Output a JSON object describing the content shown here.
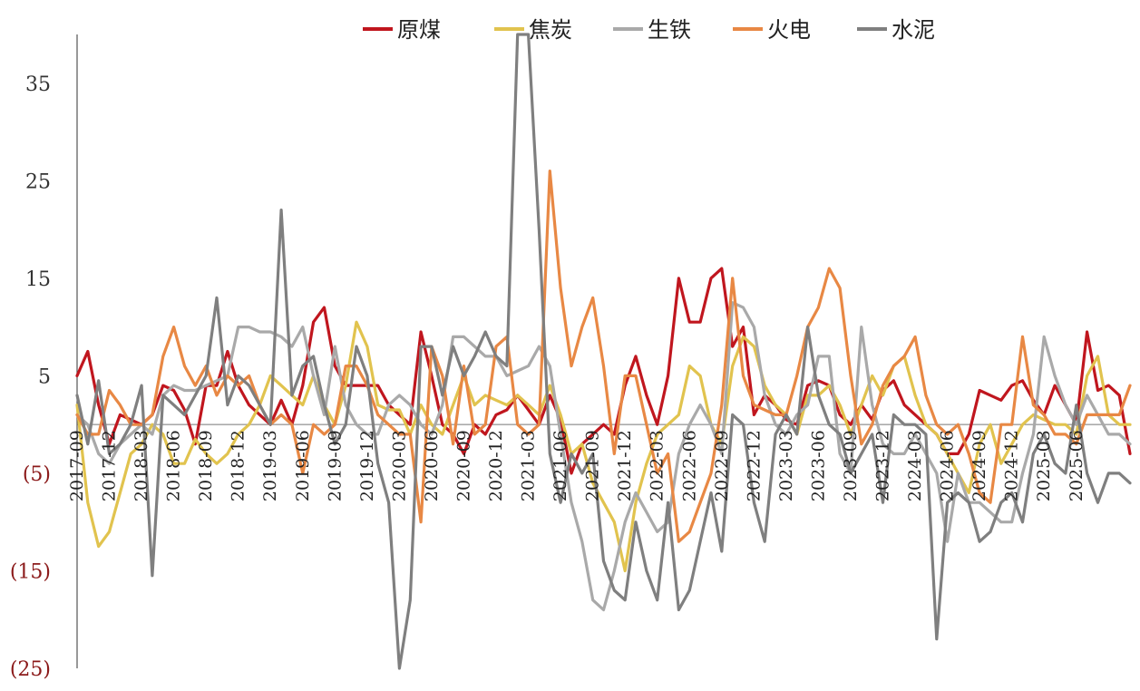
{
  "chart_data": {
    "type": "line",
    "title": "",
    "xlabel": "",
    "ylabel": "",
    "ylim": [
      -25,
      40
    ],
    "yticks": [
      {
        "value": 35,
        "label": "35"
      },
      {
        "value": 25,
        "label": "25"
      },
      {
        "value": 15,
        "label": "15"
      },
      {
        "value": 5,
        "label": "5"
      },
      {
        "value": -5,
        "label": "(5)"
      },
      {
        "value": -15,
        "label": "(15)"
      },
      {
        "value": -25,
        "label": "(25)"
      }
    ],
    "x_start": "2017-09",
    "x_end": "2025-07",
    "xtick_labels": [
      "2017-09",
      "2017-12",
      "2018-03",
      "2018-06",
      "2018-09",
      "2018-12",
      "2019-03",
      "2019-06",
      "2019-09",
      "2019-12",
      "2020-03",
      "2020-06",
      "2020-09",
      "2020-12",
      "2021-03",
      "2021-06",
      "2021-09",
      "2021-12",
      "2022-03",
      "2022-06",
      "2022-09",
      "2022-12",
      "2023-03",
      "2023-06",
      "2023-09",
      "2023-12",
      "2024-03",
      "2024-06",
      "2024-09",
      "2024-12",
      "2025-03",
      "2025-06"
    ],
    "legend_position": "top",
    "tick_colors": {
      "positive": "#333333",
      "negative": "#8B1A1A"
    },
    "series": [
      {
        "name": "原煤",
        "color": "#C0161E",
        "values": [
          5,
          7.5,
          2,
          -2,
          1,
          0.5,
          0,
          1,
          4,
          3.5,
          1.5,
          -2,
          4,
          4,
          7.5,
          4,
          2,
          1,
          0,
          2.5,
          0,
          4,
          10.5,
          12,
          6,
          4,
          4,
          4,
          4,
          2,
          1,
          0,
          9.5,
          5,
          0,
          -1,
          -3,
          0,
          -1,
          1,
          1.5,
          3,
          1.5,
          0,
          3,
          0.5,
          -5,
          -2,
          -1,
          0,
          -1,
          4,
          7,
          3,
          0,
          5,
          15,
          10.5,
          10.5,
          15,
          16,
          8,
          10,
          1,
          3,
          2,
          0.5,
          0,
          4,
          4.5,
          4,
          1,
          0,
          2,
          0.5,
          3.5,
          4.5,
          2,
          1,
          0,
          -1,
          -3,
          -3,
          -1,
          3.5,
          3,
          2.5,
          4,
          4.5,
          2.5,
          1,
          4,
          2,
          0,
          9.5,
          3.5,
          4,
          3,
          -3
        ]
      },
      {
        "name": "焦炭",
        "color": "#E1C34E",
        "values": [
          2,
          -8,
          -12.5,
          -11,
          -7,
          -3,
          -2,
          0,
          -1,
          -4,
          -4,
          -1.5,
          -3,
          -4,
          -3,
          -1,
          0,
          2,
          5,
          4,
          3,
          2,
          5,
          2,
          0,
          4,
          10.5,
          8,
          2,
          1.5,
          1.5,
          -1,
          2,
          0,
          -1,
          2,
          5,
          2,
          3,
          2.5,
          2,
          3,
          2,
          1,
          4,
          1,
          -3,
          -2,
          -6,
          -8,
          -10,
          -15,
          -8,
          -4,
          -1,
          0,
          1,
          6,
          5,
          0,
          -2,
          6,
          9,
          8,
          4,
          2,
          1,
          -1,
          3,
          3,
          4,
          2,
          -1,
          2,
          5,
          3,
          6,
          7,
          3,
          0,
          -1,
          -3,
          -5,
          -7,
          -2,
          0,
          -4,
          -2,
          0,
          1,
          0.5,
          0,
          0,
          -1,
          5,
          7,
          1,
          0,
          0
        ]
      },
      {
        "name": "生铁",
        "color": "#A9A9A9",
        "values": [
          1,
          0,
          -3,
          -4,
          -2,
          -1,
          0,
          -1,
          3,
          4,
          3.5,
          3.5,
          4,
          4.5,
          5,
          10,
          10,
          9.5,
          9.5,
          9,
          8,
          10,
          5,
          1,
          8,
          2,
          0,
          -1,
          -1,
          2,
          3,
          2,
          0,
          -1,
          2,
          9,
          9,
          8,
          7,
          7,
          5,
          5.5,
          6,
          8,
          6,
          -1,
          -8,
          -12,
          -18,
          -19,
          -15,
          -10,
          -7,
          -9,
          -11,
          -10,
          -3,
          0,
          2,
          0,
          -3,
          12.5,
          12,
          10,
          3,
          0,
          -1,
          1,
          2,
          7,
          7,
          -3,
          -5,
          10,
          2,
          -2,
          -3,
          -3,
          -1,
          -3,
          -5,
          -12,
          -5,
          -8,
          -8,
          -9,
          -10,
          -10,
          -5,
          -1,
          9,
          5,
          2,
          0,
          3,
          1,
          -1,
          -1,
          -2
        ]
      },
      {
        "name": "火电",
        "color": "#E88844",
        "values": [
          1,
          -1,
          -1,
          3.5,
          2,
          0,
          0,
          1,
          7,
          10,
          6,
          4,
          6,
          3,
          5,
          4,
          5,
          2,
          0,
          1,
          0,
          -5,
          0,
          -1,
          0,
          6,
          6,
          4,
          1,
          0,
          -1,
          -1,
          -10,
          8,
          5,
          -2,
          6,
          -1,
          0,
          8,
          9,
          0,
          -1,
          0,
          26,
          14,
          6,
          10,
          13,
          6,
          -3,
          5,
          5,
          0,
          -5,
          -3,
          -12,
          -11,
          -8,
          -5,
          2,
          15,
          5,
          2,
          1.5,
          1,
          1,
          5,
          10,
          12,
          16,
          14,
          5,
          -2,
          0,
          4,
          6,
          7,
          9,
          3,
          0,
          -1,
          0,
          -3,
          -7,
          -8,
          0,
          0,
          9,
          2,
          1,
          -1,
          -1,
          -2,
          1,
          1,
          1,
          1,
          4
        ]
      },
      {
        "name": "水泥",
        "color": "#7F7F7F",
        "values": [
          3,
          -2,
          4.5,
          -3,
          -2,
          0,
          4,
          -15.5,
          3,
          2,
          1,
          3,
          5,
          13,
          2,
          5,
          4,
          2,
          0,
          22,
          3,
          6,
          7,
          2,
          -2,
          0,
          8,
          5,
          -4,
          -8,
          -25,
          -18,
          8,
          8,
          3,
          8,
          5,
          7,
          9.5,
          7,
          6,
          40,
          40,
          20,
          -3,
          -8,
          -3,
          -5,
          -3,
          -14,
          -17,
          -18,
          -10,
          -15,
          -18,
          -8,
          -19,
          -17,
          -12,
          -7,
          -13,
          1,
          0,
          -8,
          -12,
          -1,
          1,
          -1,
          10,
          3,
          0,
          -1,
          -5,
          -3,
          -1,
          -8,
          1,
          0,
          0,
          -1,
          -22,
          -8,
          -7,
          -8,
          -12,
          -11,
          -8,
          -7,
          -10,
          -3,
          -1,
          -4,
          -5,
          2,
          -5,
          -8,
          -5,
          -5,
          -6
        ]
      }
    ]
  }
}
